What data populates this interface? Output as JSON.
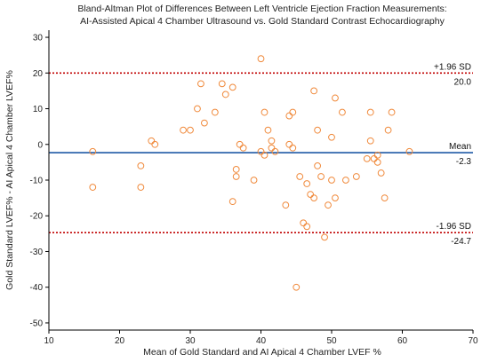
{
  "chart_data": {
    "type": "scatter",
    "title_lines": [
      "Bland-Altman Plot of Differences Between Left Ventricle Ejection Fraction Measurements:",
      "AI-Assisted Apical 4 Chamber Ultrasound vs. Gold Standard Contrast Echocardiography"
    ],
    "xlabel": "Mean of Gold Standard and AI Apical 4 Chamber LVEF %",
    "ylabel": "Gold Standard LVEF% - AI Apical 4 Chamber LVEF%",
    "xlim": [
      10,
      70
    ],
    "ylim": [
      -52,
      32
    ],
    "xticks": [
      10,
      20,
      30,
      40,
      50,
      60,
      70
    ],
    "yticks": [
      -50,
      -40,
      -30,
      -20,
      -10,
      0,
      10,
      20,
      30
    ],
    "grid": false,
    "colors": {
      "points": "#f08a3c",
      "mean_line": "#1f5aa6",
      "sd_lines": "#c00000",
      "axis": "#000000"
    },
    "reference_lines": [
      {
        "name": "+1.96 SD",
        "value": 20.0,
        "value_label": "20.0",
        "style": "dotted"
      },
      {
        "name": "Mean",
        "value": -2.3,
        "value_label": "-2.3",
        "style": "solid"
      },
      {
        "name": "-1.96 SD",
        "value": -24.7,
        "value_label": "-24.7",
        "style": "dotted"
      }
    ],
    "points": [
      {
        "x": 16.2,
        "y": -2
      },
      {
        "x": 16.2,
        "y": -12
      },
      {
        "x": 23.0,
        "y": -6
      },
      {
        "x": 23.0,
        "y": -12
      },
      {
        "x": 24.5,
        "y": 1
      },
      {
        "x": 25.0,
        "y": 0
      },
      {
        "x": 29.0,
        "y": 4
      },
      {
        "x": 30.0,
        "y": 4
      },
      {
        "x": 31.0,
        "y": 10
      },
      {
        "x": 31.5,
        "y": 17
      },
      {
        "x": 32.0,
        "y": 6
      },
      {
        "x": 33.5,
        "y": 9
      },
      {
        "x": 34.5,
        "y": 17
      },
      {
        "x": 35.0,
        "y": 14
      },
      {
        "x": 36.0,
        "y": 16
      },
      {
        "x": 36.0,
        "y": -16
      },
      {
        "x": 36.5,
        "y": -7
      },
      {
        "x": 36.5,
        "y": -9
      },
      {
        "x": 37.0,
        "y": 0
      },
      {
        "x": 37.5,
        "y": -1
      },
      {
        "x": 39.0,
        "y": -10
      },
      {
        "x": 40.0,
        "y": 24
      },
      {
        "x": 40.0,
        "y": -2
      },
      {
        "x": 40.5,
        "y": 9
      },
      {
        "x": 40.5,
        "y": -3
      },
      {
        "x": 41.0,
        "y": 4
      },
      {
        "x": 41.5,
        "y": 1
      },
      {
        "x": 41.5,
        "y": -1
      },
      {
        "x": 42.0,
        "y": -2
      },
      {
        "x": 43.5,
        "y": -17
      },
      {
        "x": 44.0,
        "y": 8
      },
      {
        "x": 44.0,
        "y": 0
      },
      {
        "x": 44.5,
        "y": 9
      },
      {
        "x": 44.5,
        "y": -1
      },
      {
        "x": 45.0,
        "y": -40
      },
      {
        "x": 45.5,
        "y": -9
      },
      {
        "x": 46.0,
        "y": -22
      },
      {
        "x": 46.5,
        "y": -23
      },
      {
        "x": 46.5,
        "y": -11
      },
      {
        "x": 47.0,
        "y": -14
      },
      {
        "x": 47.5,
        "y": -15
      },
      {
        "x": 47.5,
        "y": 15
      },
      {
        "x": 48.0,
        "y": 4
      },
      {
        "x": 48.0,
        "y": -6
      },
      {
        "x": 48.5,
        "y": -9
      },
      {
        "x": 49.0,
        "y": -26
      },
      {
        "x": 49.5,
        "y": -17
      },
      {
        "x": 50.0,
        "y": 2
      },
      {
        "x": 50.0,
        "y": -10
      },
      {
        "x": 50.5,
        "y": 13
      },
      {
        "x": 50.5,
        "y": -15
      },
      {
        "x": 51.5,
        "y": 9
      },
      {
        "x": 52.0,
        "y": -10
      },
      {
        "x": 53.5,
        "y": -9
      },
      {
        "x": 55.0,
        "y": -4
      },
      {
        "x": 55.5,
        "y": 9
      },
      {
        "x": 55.5,
        "y": 1
      },
      {
        "x": 56.0,
        "y": -4
      },
      {
        "x": 56.5,
        "y": -3
      },
      {
        "x": 56.5,
        "y": -5
      },
      {
        "x": 57.0,
        "y": -8
      },
      {
        "x": 57.5,
        "y": -15
      },
      {
        "x": 58.0,
        "y": 4
      },
      {
        "x": 58.5,
        "y": 9
      },
      {
        "x": 61.0,
        "y": -2
      }
    ]
  }
}
